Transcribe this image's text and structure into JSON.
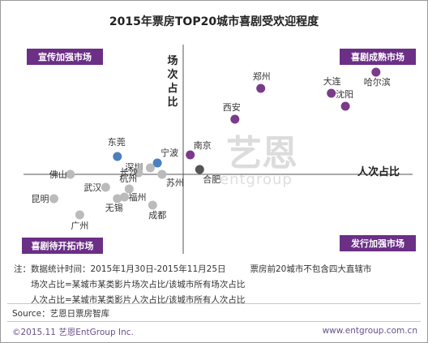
{
  "chart_data": {
    "type": "scatter",
    "title": "2015年票房TOP20城市喜剧受欢迎程度",
    "xlabel": "人次占比",
    "ylabel": "场次占比",
    "grid": false,
    "quadrants": {
      "top_left": "宣传加强市场",
      "top_right": "喜剧成熟市场",
      "bottom_left": "喜剧待开拓市场",
      "bottom_right": "发行加强市场"
    },
    "points": [
      {
        "label": "哈尔滨",
        "x": 8.2,
        "y": 6.3,
        "color": "#7a3b8a"
      },
      {
        "label": "大连",
        "x": 6.3,
        "y": 5.0,
        "color": "#7a3b8a"
      },
      {
        "label": "沈阳",
        "x": 6.9,
        "y": 4.2,
        "color": "#7a3b8a"
      },
      {
        "label": "郑州",
        "x": 3.3,
        "y": 5.3,
        "color": "#7a3b8a"
      },
      {
        "label": "西安",
        "x": 2.2,
        "y": 3.4,
        "color": "#7a3b8a"
      },
      {
        "label": "南京",
        "x": 0.3,
        "y": 1.2,
        "color": "#7a3b8a"
      },
      {
        "label": "合肥",
        "x": 0.7,
        "y": 0.3,
        "color": "#555555"
      },
      {
        "label": "东莞",
        "x": -2.8,
        "y": 1.1,
        "color": "#4a7fc0"
      },
      {
        "label": "宁波",
        "x": -1.1,
        "y": 0.7,
        "color": "#4a7fc0"
      },
      {
        "label": "深圳",
        "x": -1.4,
        "y": 0.4,
        "color": "#bbbbbb"
      },
      {
        "label": "长沙",
        "x": -1.9,
        "y": 0.1,
        "color": "#bbbbbb"
      },
      {
        "label": "苏州",
        "x": -0.9,
        "y": 0.0,
        "color": "#bbbbbb"
      },
      {
        "label": "佛山",
        "x": -4.8,
        "y": 0.0,
        "color": "#bbbbbb"
      },
      {
        "label": "武汉",
        "x": -3.3,
        "y": -0.8,
        "color": "#bbbbbb"
      },
      {
        "label": "杭州",
        "x": -2.3,
        "y": -0.9,
        "color": "#bbbbbb"
      },
      {
        "label": "福州",
        "x": -2.5,
        "y": -1.4,
        "color": "#bbbbbb"
      },
      {
        "label": "无锡",
        "x": -2.8,
        "y": -1.5,
        "color": "#bbbbbb"
      },
      {
        "label": "昆明",
        "x": -5.5,
        "y": -1.5,
        "color": "#bbbbbb"
      },
      {
        "label": "成都",
        "x": -1.3,
        "y": -1.9,
        "color": "#bbbbbb"
      },
      {
        "label": "广州",
        "x": -4.4,
        "y": -2.5,
        "color": "#bbbbbb"
      }
    ]
  },
  "watermark": {
    "logo": "艺恩",
    "sub": "entgroup"
  },
  "notes": {
    "prefix": "注：",
    "line1": "数据统计时间：2015年1月30日-2015年11月25日",
    "line1_extra": "票房前20城市不包含四大直辖市",
    "line2": "场次占比=某城市某类影片场次占比/该城市所有场次占比",
    "line3": "人次占比=某城市某类影片人次占比/该城市所有人次占比"
  },
  "source": "Source：艺恩日票房智库",
  "footer": {
    "left": "©2015.11 艺恩EntGroup Inc.",
    "right": "www.entgroup.com.cn"
  },
  "colors": {
    "quadrant_box": "#6b2f86",
    "accent": "#6a4f8a"
  }
}
